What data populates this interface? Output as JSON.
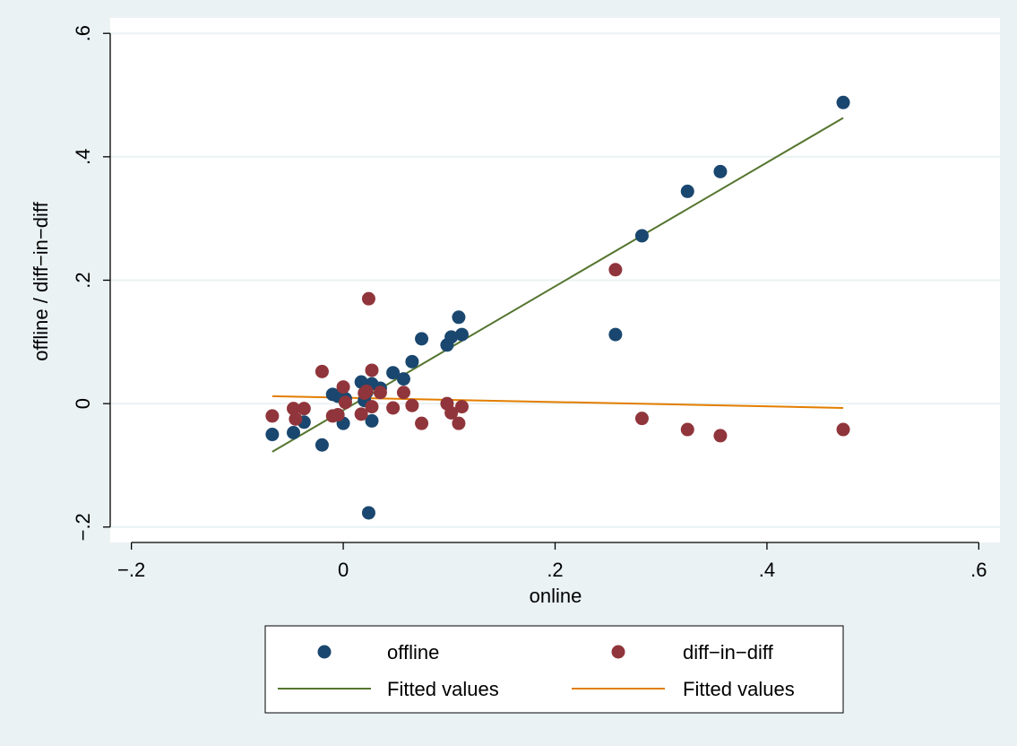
{
  "chart_data": {
    "type": "scatter",
    "title": "",
    "xlabel": "online",
    "ylabel": "offline / diff−in−diff",
    "xlim": [
      -0.22,
      0.62
    ],
    "ylim": [
      -0.225,
      0.625
    ],
    "x_ticks": [
      -0.2,
      0,
      0.2,
      0.4,
      0.6
    ],
    "x_tick_labels": [
      "−.2",
      "0",
      ".2",
      ".4",
      ".6"
    ],
    "y_ticks": [
      -0.2,
      0,
      0.2,
      0.4,
      0.6
    ],
    "y_tick_labels": [
      "−.2",
      "0",
      ".2",
      ".4",
      ".6"
    ],
    "grid": "horizontal",
    "legend_position": "bottom",
    "colors": {
      "offline": "#1a476f",
      "diff_in_diff": "#90353b",
      "fit_offline": "#55752f",
      "fit_diff": "#e37e00",
      "plot_background": "#ffffff",
      "outer_background": "#eaf2f3"
    },
    "series": [
      {
        "name": "offline",
        "kind": "scatter",
        "color": "#1a476f",
        "points": [
          [
            -0.067,
            -0.05
          ],
          [
            -0.047,
            -0.047
          ],
          [
            -0.037,
            -0.03
          ],
          [
            -0.02,
            -0.067
          ],
          [
            -0.01,
            0.015
          ],
          [
            -0.005,
            0.012
          ],
          [
            0.0,
            -0.032
          ],
          [
            0.002,
            0.008
          ],
          [
            0.017,
            0.035
          ],
          [
            0.02,
            0.005
          ],
          [
            0.022,
            0.018
          ],
          [
            0.024,
            -0.177
          ],
          [
            0.027,
            0.032
          ],
          [
            0.027,
            -0.028
          ],
          [
            0.035,
            0.025
          ],
          [
            0.047,
            0.05
          ],
          [
            0.057,
            0.04
          ],
          [
            0.065,
            0.068
          ],
          [
            0.074,
            0.105
          ],
          [
            0.098,
            0.095
          ],
          [
            0.102,
            0.108
          ],
          [
            0.109,
            0.14
          ],
          [
            0.112,
            0.112
          ],
          [
            0.257,
            0.112
          ],
          [
            0.282,
            0.272
          ],
          [
            0.325,
            0.344
          ],
          [
            0.356,
            0.376
          ],
          [
            0.472,
            0.488
          ]
        ]
      },
      {
        "name": "diff−in−diff",
        "kind": "scatter",
        "color": "#90353b",
        "points": [
          [
            -0.067,
            -0.02
          ],
          [
            -0.047,
            -0.008
          ],
          [
            -0.045,
            -0.025
          ],
          [
            -0.037,
            -0.008
          ],
          [
            -0.02,
            0.052
          ],
          [
            -0.01,
            -0.02
          ],
          [
            -0.005,
            -0.018
          ],
          [
            0.0,
            0.027
          ],
          [
            0.002,
            0.002
          ],
          [
            0.017,
            -0.017
          ],
          [
            0.02,
            0.017
          ],
          [
            0.022,
            0.02
          ],
          [
            0.024,
            0.17
          ],
          [
            0.027,
            0.054
          ],
          [
            0.027,
            -0.005
          ],
          [
            0.035,
            0.018
          ],
          [
            0.047,
            -0.007
          ],
          [
            0.057,
            0.018
          ],
          [
            0.065,
            -0.003
          ],
          [
            0.074,
            -0.032
          ],
          [
            0.098,
            0.0
          ],
          [
            0.102,
            -0.015
          ],
          [
            0.109,
            -0.032
          ],
          [
            0.112,
            -0.005
          ],
          [
            0.257,
            0.217
          ],
          [
            0.282,
            -0.024
          ],
          [
            0.325,
            -0.042
          ],
          [
            0.356,
            -0.052
          ],
          [
            0.472,
            -0.042
          ]
        ]
      },
      {
        "name": "Fitted values",
        "kind": "line",
        "color": "#55752f",
        "points": [
          [
            -0.067,
            -0.078
          ],
          [
            0.472,
            0.463
          ]
        ]
      },
      {
        "name": "Fitted values",
        "kind": "line",
        "color": "#e37e00",
        "points": [
          [
            -0.067,
            0.012
          ],
          [
            0.472,
            -0.007
          ]
        ]
      }
    ]
  }
}
